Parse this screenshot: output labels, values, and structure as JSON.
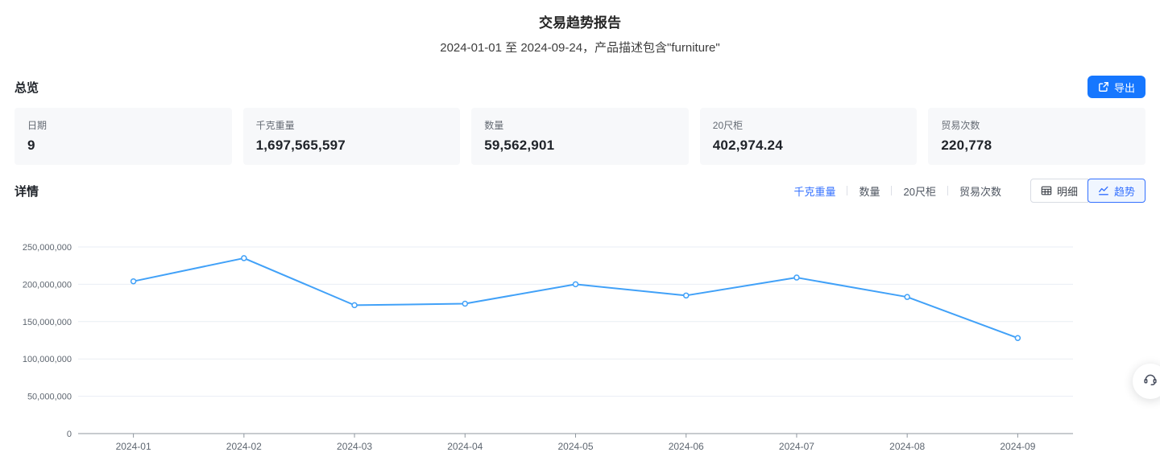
{
  "header": {
    "title": "交易趋势报告",
    "subtitle": "2024-01-01 至 2024-09-24，产品描述包含\"furniture\""
  },
  "overview": {
    "section_title": "总览",
    "export_label": "导出",
    "export_icon": "external-link-icon",
    "cards": [
      {
        "label": "日期",
        "value": "9"
      },
      {
        "label": "千克重量",
        "value": "1,697,565,597"
      },
      {
        "label": "数量",
        "value": "59,562,901"
      },
      {
        "label": "20尺柜",
        "value": "402,974.24"
      },
      {
        "label": "贸易次数",
        "value": "220,778"
      }
    ]
  },
  "details": {
    "section_title": "详情",
    "metric_tabs": [
      {
        "label": "千克重量",
        "active": true
      },
      {
        "label": "数量",
        "active": false
      },
      {
        "label": "20尺柜",
        "active": false
      },
      {
        "label": "贸易次数",
        "active": false
      }
    ],
    "view_buttons": [
      {
        "label": "明细",
        "icon": "table-grid-icon",
        "active": false
      },
      {
        "label": "趋势",
        "icon": "line-chart-icon",
        "active": true
      }
    ]
  },
  "chart_data": {
    "type": "line",
    "title": "",
    "xlabel": "",
    "ylabel": "",
    "categories": [
      "2024-01",
      "2024-02",
      "2024-03",
      "2024-04",
      "2024-05",
      "2024-06",
      "2024-07",
      "2024-08",
      "2024-09"
    ],
    "series": [
      {
        "name": "千克重量",
        "values": [
          204000000,
          235000000,
          172000000,
          174000000,
          200000000,
          185000000,
          209000000,
          183000000,
          128000000
        ]
      }
    ],
    "ylim": [
      0,
      250000000
    ],
    "y_tick_labels": [
      "0",
      "50,000,000",
      "100,000,000",
      "150,000,000",
      "200,000,000",
      "250,000,000"
    ],
    "grid": true,
    "legend": false,
    "marker": "open-circle",
    "line_color": "#41a1f8",
    "grid_color": "#e9edf4",
    "axis_color": "#8f979f",
    "tick_label_color": "#5e6670"
  },
  "floating": {
    "support_icon": "headset-icon"
  },
  "colors": {
    "accent": "#1677ff",
    "tab_active": "#3370ff",
    "card_bg": "#f7f8fa"
  }
}
